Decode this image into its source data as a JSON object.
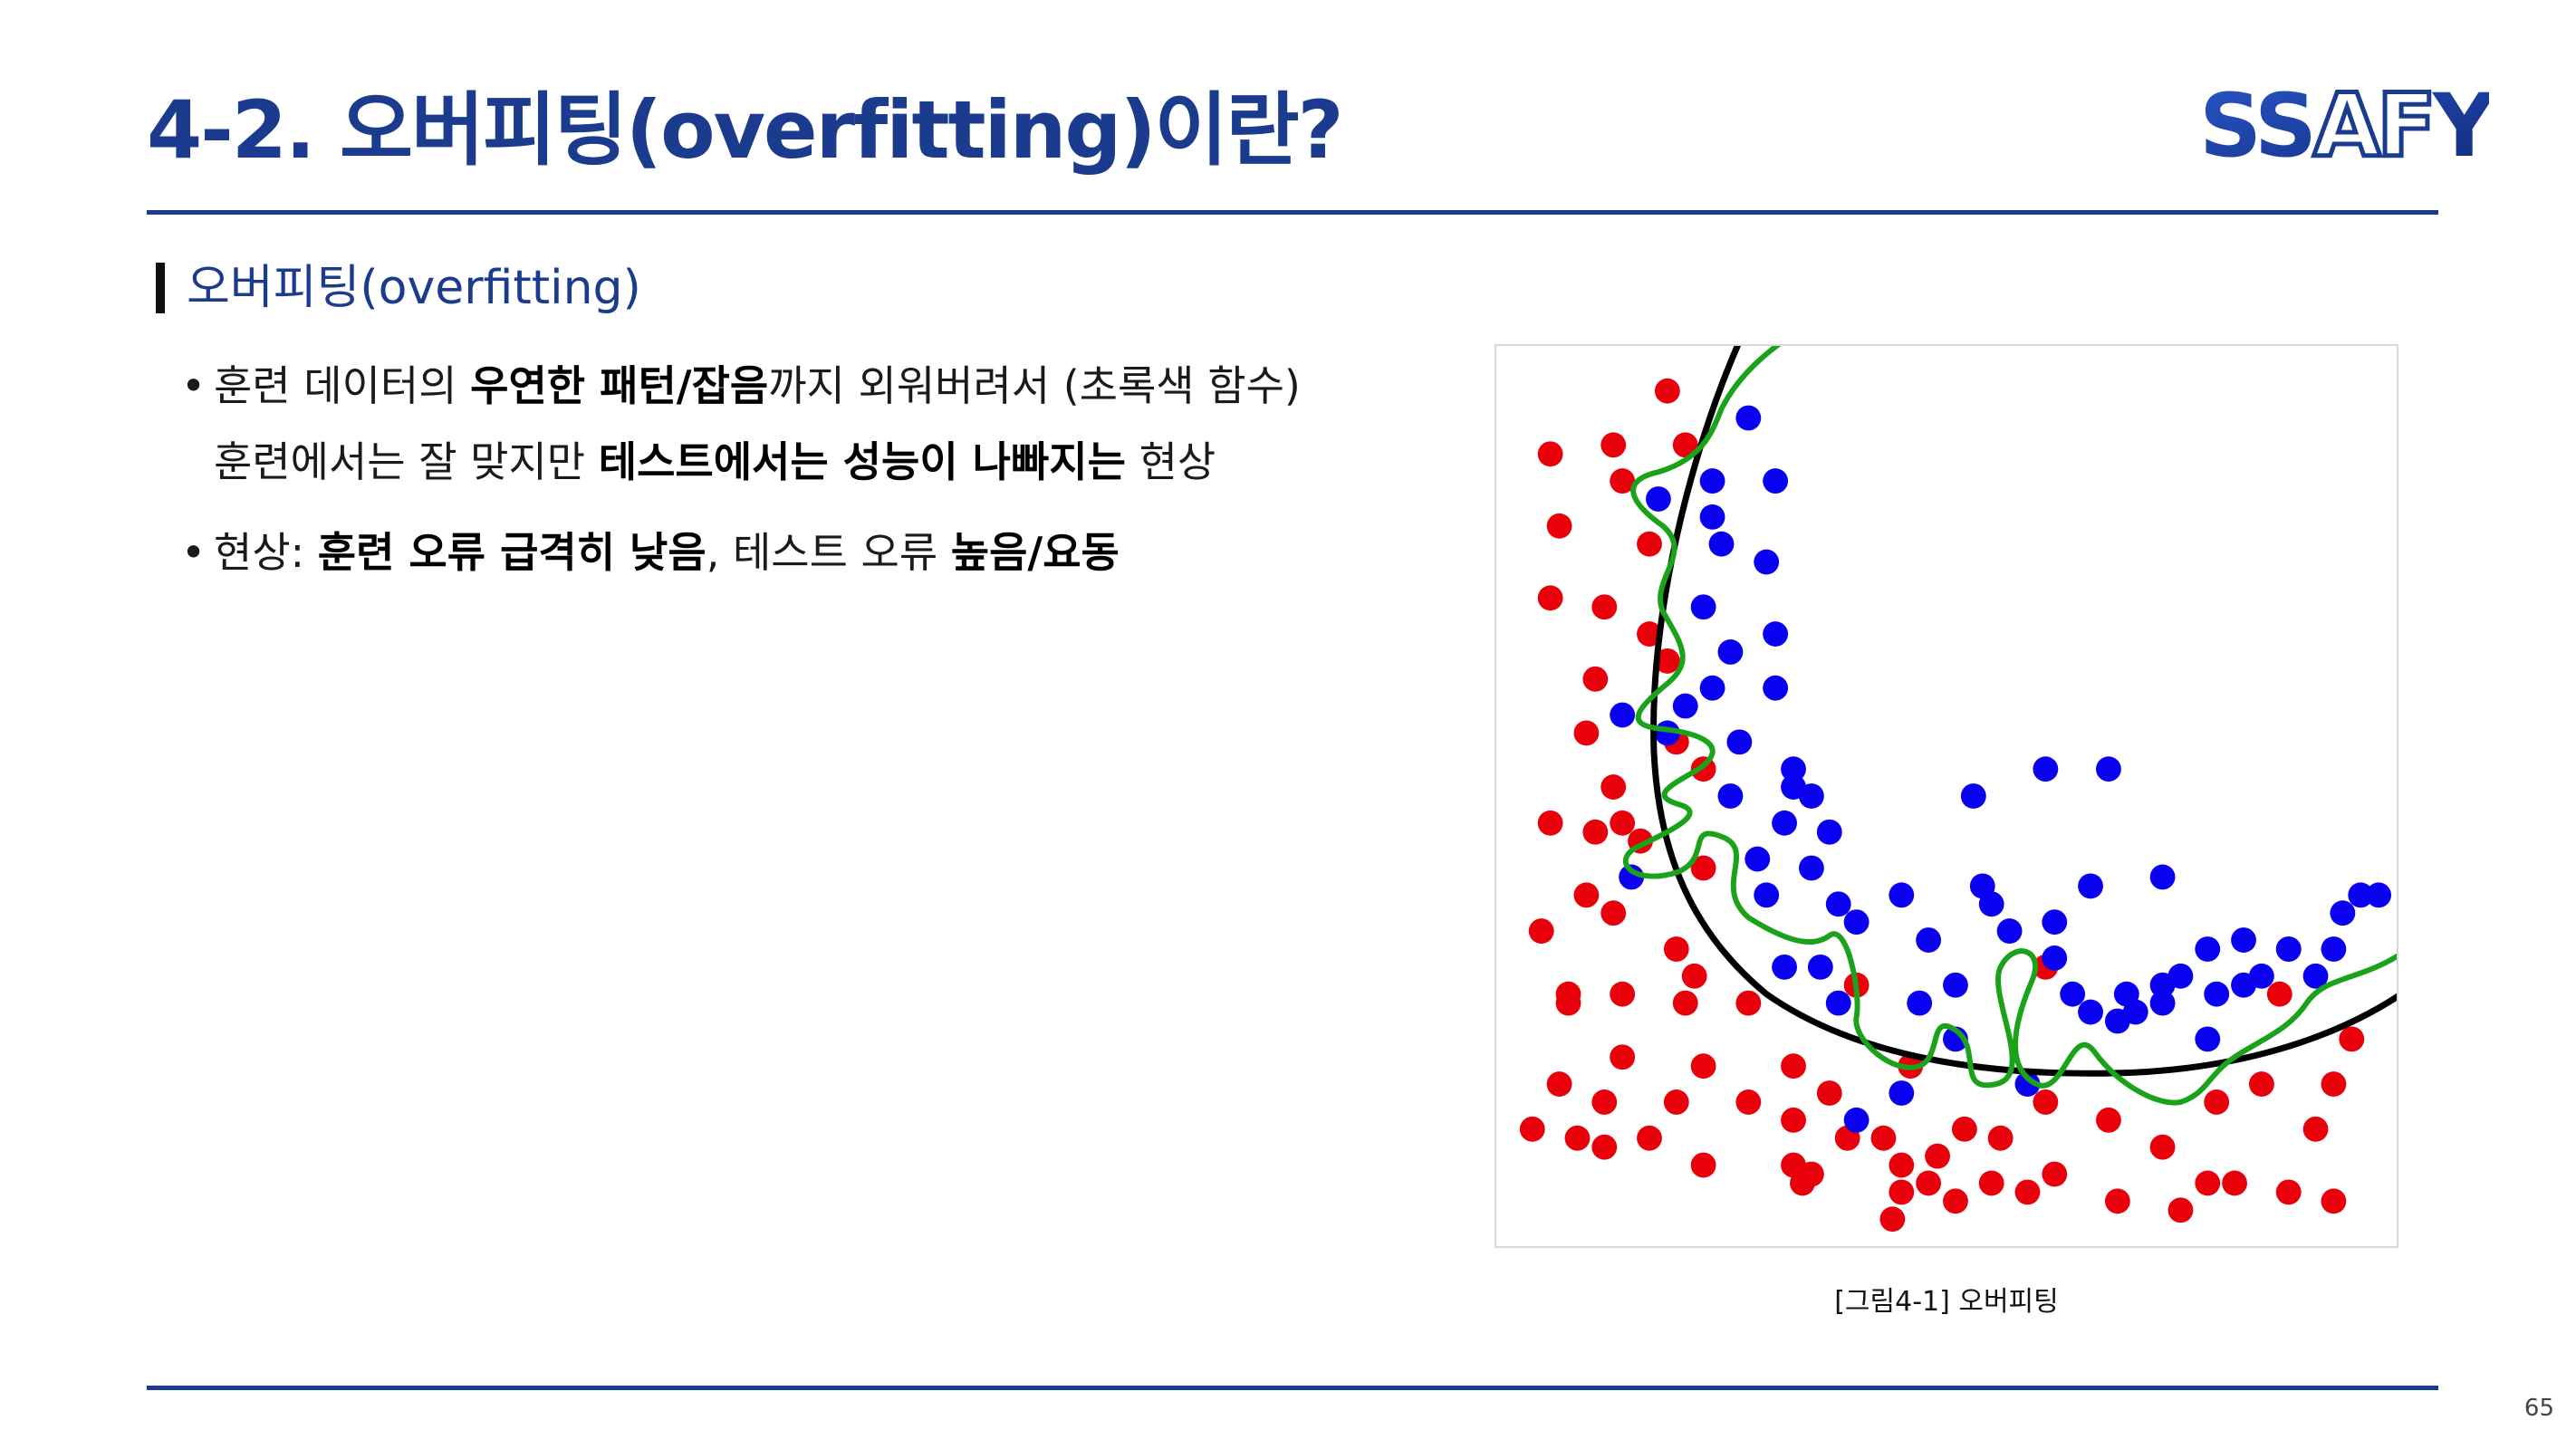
{
  "header": {
    "title": "4-2. 오버피팅(overfitting)이란?",
    "logo_text": "SSAFY"
  },
  "section": {
    "heading": "오버피팅(overfitting)"
  },
  "bullets": [
    {
      "line1": [
        {
          "text": "훈련 데이터의 ",
          "bold": false
        },
        {
          "text": "우연한 패턴/잡음",
          "bold": true
        },
        {
          "text": "까지 외워버려서 (초록색 함수)",
          "bold": false
        }
      ],
      "line2": [
        {
          "text": "훈련에서는 잘 맞지만 ",
          "bold": false
        },
        {
          "text": "테스트에서는 성능이 나빠지는",
          "bold": true
        },
        {
          "text": " 현상",
          "bold": false
        }
      ]
    },
    {
      "line1": [
        {
          "text": "현상: ",
          "bold": false
        },
        {
          "text": "훈련 오류 급격히 낮음",
          "bold": true
        },
        {
          "text": ", 테스트 오류 ",
          "bold": false
        },
        {
          "text": "높음/요동",
          "bold": true
        }
      ]
    }
  ],
  "figure": {
    "caption": "[그림4-1] 오버피팅",
    "colors": {
      "class_a": "#e8000b",
      "class_b": "#0a00f0",
      "smooth_boundary": "#000000",
      "overfit_boundary": "#1aa31a"
    },
    "red_points": [
      [
        0.19,
        0.05
      ],
      [
        0.06,
        0.12
      ],
      [
        0.13,
        0.11
      ],
      [
        0.21,
        0.11
      ],
      [
        0.14,
        0.15
      ],
      [
        0.07,
        0.2
      ],
      [
        0.17,
        0.22
      ],
      [
        0.06,
        0.28
      ],
      [
        0.12,
        0.29
      ],
      [
        0.17,
        0.32
      ],
      [
        0.19,
        0.35
      ],
      [
        0.11,
        0.37
      ],
      [
        0.1,
        0.43
      ],
      [
        0.2,
        0.44
      ],
      [
        0.13,
        0.49
      ],
      [
        0.06,
        0.53
      ],
      [
        0.11,
        0.54
      ],
      [
        0.14,
        0.53
      ],
      [
        0.16,
        0.55
      ],
      [
        0.23,
        0.47
      ],
      [
        0.23,
        0.58
      ],
      [
        0.1,
        0.61
      ],
      [
        0.13,
        0.63
      ],
      [
        0.05,
        0.65
      ],
      [
        0.2,
        0.67
      ],
      [
        0.22,
        0.7
      ],
      [
        0.08,
        0.72
      ],
      [
        0.14,
        0.72
      ],
      [
        0.21,
        0.73
      ],
      [
        0.28,
        0.73
      ],
      [
        0.08,
        0.73
      ],
      [
        0.14,
        0.79
      ],
      [
        0.23,
        0.8
      ],
      [
        0.33,
        0.8
      ],
      [
        0.4,
        0.71
      ],
      [
        0.46,
        0.8
      ],
      [
        0.07,
        0.82
      ],
      [
        0.12,
        0.84
      ],
      [
        0.2,
        0.84
      ],
      [
        0.28,
        0.84
      ],
      [
        0.33,
        0.86
      ],
      [
        0.37,
        0.83
      ],
      [
        0.43,
        0.88
      ],
      [
        0.09,
        0.88
      ],
      [
        0.17,
        0.88
      ],
      [
        0.04,
        0.87
      ],
      [
        0.12,
        0.89
      ],
      [
        0.23,
        0.91
      ],
      [
        0.33,
        0.91
      ],
      [
        0.39,
        0.88
      ],
      [
        0.45,
        0.91
      ],
      [
        0.49,
        0.9
      ],
      [
        0.52,
        0.87
      ],
      [
        0.56,
        0.88
      ],
      [
        0.61,
        0.84
      ],
      [
        0.68,
        0.86
      ],
      [
        0.74,
        0.89
      ],
      [
        0.8,
        0.84
      ],
      [
        0.85,
        0.82
      ],
      [
        0.91,
        0.87
      ],
      [
        0.93,
        0.82
      ],
      [
        0.95,
        0.77
      ],
      [
        0.35,
        0.92
      ],
      [
        0.34,
        0.93
      ],
      [
        0.45,
        0.94
      ],
      [
        0.48,
        0.93
      ],
      [
        0.51,
        0.95
      ],
      [
        0.59,
        0.94
      ],
      [
        0.62,
        0.92
      ],
      [
        0.69,
        0.95
      ],
      [
        0.76,
        0.96
      ],
      [
        0.79,
        0.93
      ],
      [
        0.82,
        0.93
      ],
      [
        0.88,
        0.94
      ],
      [
        0.93,
        0.95
      ],
      [
        0.44,
        0.97
      ],
      [
        0.55,
        0.93
      ],
      [
        0.87,
        0.72
      ],
      [
        0.61,
        0.69
      ]
    ],
    "blue_points": [
      [
        0.28,
        0.08
      ],
      [
        0.24,
        0.15
      ],
      [
        0.31,
        0.15
      ],
      [
        0.18,
        0.17
      ],
      [
        0.24,
        0.19
      ],
      [
        0.25,
        0.22
      ],
      [
        0.3,
        0.24
      ],
      [
        0.23,
        0.29
      ],
      [
        0.31,
        0.32
      ],
      [
        0.26,
        0.34
      ],
      [
        0.24,
        0.38
      ],
      [
        0.31,
        0.38
      ],
      [
        0.21,
        0.4
      ],
      [
        0.14,
        0.41
      ],
      [
        0.19,
        0.43
      ],
      [
        0.27,
        0.44
      ],
      [
        0.33,
        0.47
      ],
      [
        0.33,
        0.49
      ],
      [
        0.35,
        0.5
      ],
      [
        0.26,
        0.5
      ],
      [
        0.32,
        0.53
      ],
      [
        0.37,
        0.54
      ],
      [
        0.29,
        0.57
      ],
      [
        0.35,
        0.58
      ],
      [
        0.15,
        0.59
      ],
      [
        0.3,
        0.61
      ],
      [
        0.38,
        0.62
      ],
      [
        0.4,
        0.64
      ],
      [
        0.45,
        0.61
      ],
      [
        0.48,
        0.66
      ],
      [
        0.53,
        0.5
      ],
      [
        0.61,
        0.47
      ],
      [
        0.68,
        0.47
      ],
      [
        0.54,
        0.6
      ],
      [
        0.55,
        0.62
      ],
      [
        0.62,
        0.64
      ],
      [
        0.66,
        0.6
      ],
      [
        0.74,
        0.59
      ],
      [
        0.83,
        0.66
      ],
      [
        0.88,
        0.67
      ],
      [
        0.32,
        0.69
      ],
      [
        0.36,
        0.69
      ],
      [
        0.38,
        0.73
      ],
      [
        0.47,
        0.73
      ],
      [
        0.51,
        0.71
      ],
      [
        0.57,
        0.65
      ],
      [
        0.62,
        0.68
      ],
      [
        0.64,
        0.72
      ],
      [
        0.66,
        0.74
      ],
      [
        0.7,
        0.72
      ],
      [
        0.74,
        0.71
      ],
      [
        0.76,
        0.7
      ],
      [
        0.79,
        0.67
      ],
      [
        0.8,
        0.72
      ],
      [
        0.83,
        0.71
      ],
      [
        0.85,
        0.7
      ],
      [
        0.88,
        0.67
      ],
      [
        0.91,
        0.7
      ],
      [
        0.93,
        0.67
      ],
      [
        0.94,
        0.63
      ],
      [
        0.96,
        0.61
      ],
      [
        0.98,
        0.61
      ],
      [
        0.59,
        0.82
      ],
      [
        0.51,
        0.77
      ],
      [
        0.74,
        0.73
      ],
      [
        0.79,
        0.77
      ],
      [
        0.45,
        0.83
      ],
      [
        0.4,
        0.86
      ],
      [
        0.71,
        0.74
      ],
      [
        0.69,
        0.75
      ]
    ]
  },
  "page_number": "65"
}
